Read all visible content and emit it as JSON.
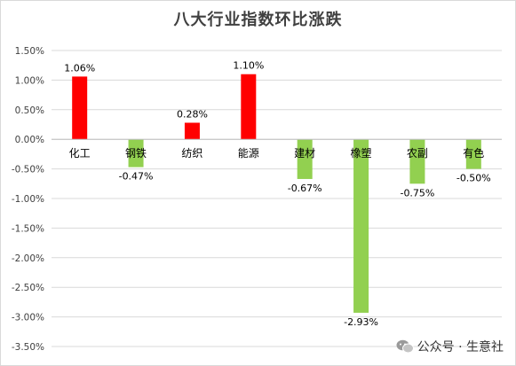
{
  "chart_data": {
    "type": "bar",
    "title": "八大行业指数环比涨跌",
    "categories": [
      "化工",
      "钢铁",
      "纺织",
      "能源",
      "建材",
      "橡塑",
      "农副",
      "有色"
    ],
    "values": [
      1.06,
      -0.47,
      0.28,
      1.1,
      -0.67,
      -2.93,
      -0.75,
      -0.5
    ],
    "value_labels": [
      "1.06%",
      "-0.47%",
      "0.28%",
      "1.10%",
      "-0.67%",
      "-2.93%",
      "-0.75%",
      "-0.50%"
    ],
    "ylim": [
      -3.5,
      1.5
    ],
    "yticks": [
      1.5,
      1.0,
      0.5,
      0.0,
      -0.5,
      -1.0,
      -1.5,
      -2.0,
      -2.5,
      -3.0,
      -3.5
    ],
    "ytick_labels": [
      "1.50%",
      "1.00%",
      "0.50%",
      "0.00%",
      "-0.50%",
      "-1.00%",
      "-1.50%",
      "-2.00%",
      "-2.50%",
      "-3.00%",
      "-3.50%"
    ],
    "xlabel": "",
    "ylabel": "",
    "grid": true,
    "colors": {
      "positive": "#ff0000",
      "negative": "#92d050",
      "grid": "#d9d9d9",
      "text": "#404040"
    }
  },
  "watermark": {
    "text": "公众号 · 生意社",
    "icon": "wechat-icon"
  }
}
